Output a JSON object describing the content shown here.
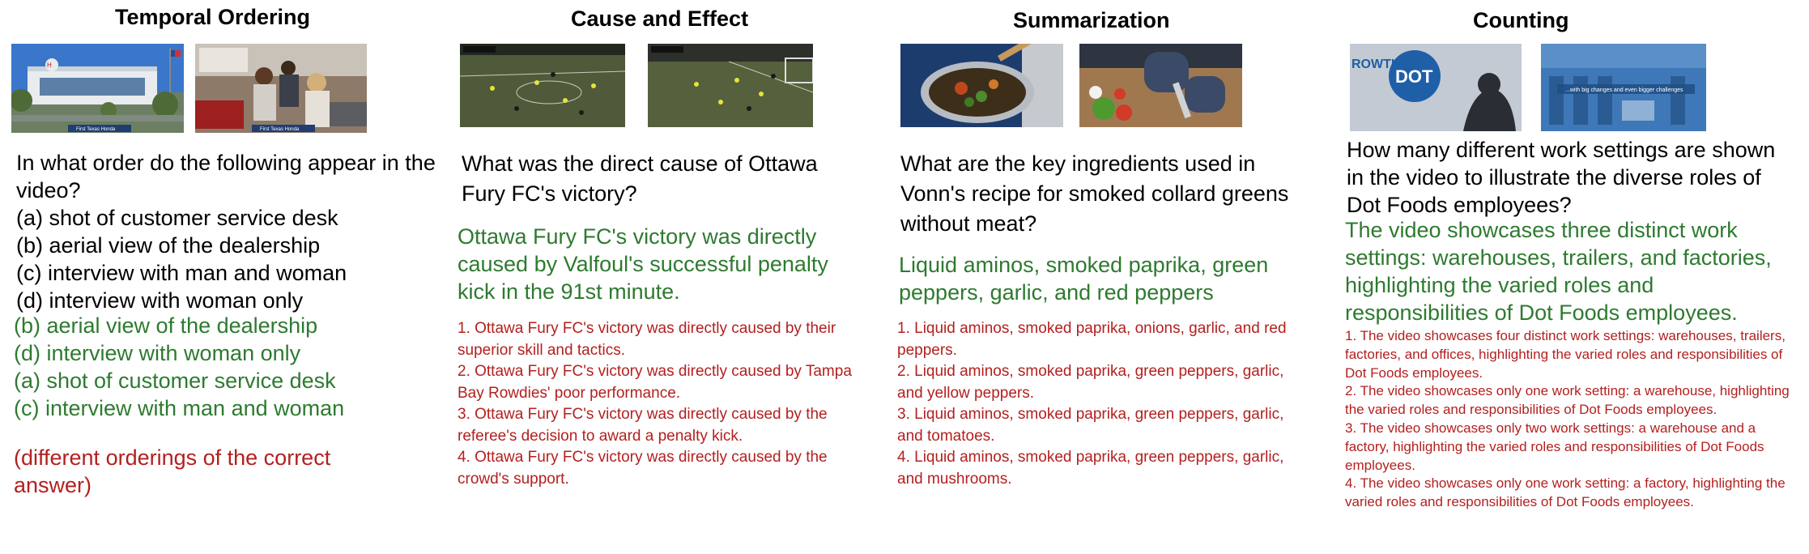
{
  "panels": [
    {
      "title": "Temporal Ordering",
      "question": "In what order do the following appear in the video?",
      "options": [
        "(a) shot of customer service desk",
        "(b) aerial view of the dealership",
        "(c) interview with man and woman",
        "(d) interview with woman only"
      ],
      "answer": [
        "(b) aerial view of the dealership",
        "(d) interview with woman only",
        "(a) shot of customer service desk",
        "(c) interview with man and woman"
      ],
      "distractor_note": "(different orderings of the correct answer)",
      "caption1": "First Texas Honda",
      "caption2": "First Texas Honda",
      "colors": {
        "sky": "#3a76c9",
        "building": "#e8ecef",
        "showroom": "#8d7a68"
      }
    },
    {
      "title": "Cause and Effect",
      "question": "What was the direct cause of Ottawa Fury FC's victory?",
      "answer": "Ottawa Fury FC's victory was directly caused by Valfoul's successful penalty kick in the 91st minute.",
      "distractors": [
        "1. Ottawa Fury FC's victory was directly caused by their superior skill and tactics.",
        "2. Ottawa Fury FC's victory was directly caused by Tampa Bay Rowdies' poor performance.",
        "3. Ottawa Fury FC's victory was directly caused by the referee's decision to award a penalty kick.",
        "4. Ottawa Fury FC's victory was directly caused by the crowd's support."
      ],
      "colors": {
        "pitch": "#4f5a3a"
      }
    },
    {
      "title": "Summarization",
      "question": "What are the key ingredients used in Vonn's recipe for smoked collard greens without meat?",
      "answer": "Liquid aminos, smoked paprika, green peppers, garlic, and red peppers",
      "distractors": [
        "1. Liquid aminos, smoked paprika, onions, garlic, and red peppers.",
        "2. Liquid aminos, smoked paprika, green peppers, garlic, and yellow peppers.",
        "3. Liquid aminos, smoked paprika, green peppers, garlic, and tomatoes.",
        "4. Liquid aminos, smoked paprika, green peppers, garlic, and mushrooms."
      ],
      "colors": {
        "pot": "#1d3c6e",
        "board": "#a07850"
      }
    },
    {
      "title": "Counting",
      "question": "How many different work settings are shown in the video to illustrate the diverse roles of Dot Foods employees?",
      "answer": "The video showcases three distinct work settings: warehouses, trailers, and factories, highlighting the varied roles and responsibilities of Dot Foods employees.",
      "distractors": [
        "1. The video showcases four distinct work settings: warehouses, trailers, factories, and offices, highlighting the varied roles and responsibilities of Dot Foods employees.",
        "2. The video showcases only one work setting: a warehouse, highlighting the varied roles and responsibilities of Dot Foods employees.",
        "3. The video showcases only two work settings: a warehouse and a factory, highlighting the varied roles and responsibilities of Dot Foods employees.",
        "4. The video showcases only one work setting: a factory, highlighting the varied roles and responsibilities of Dot Foods employees."
      ],
      "logo_text": "DOT",
      "sign_text": "ROWTH",
      "banner_text": "...with big changes and even bigger challenges",
      "colors": {
        "logo": "#1e5fa8",
        "warehouse": "#3f78b8"
      }
    }
  ]
}
